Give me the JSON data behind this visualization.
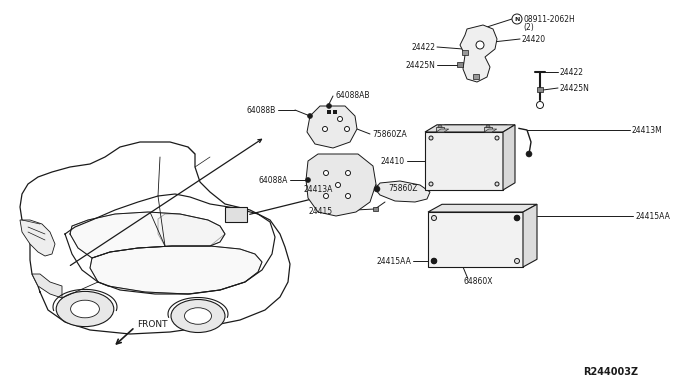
{
  "bg_color": "#ffffff",
  "line_color": "#1a1a1a",
  "text_color": "#1a1a1a",
  "diagram_id": "R244003Z",
  "front_label": "FRONT",
  "labels": {
    "bolt": "08911-2062H",
    "bolt2": "(2)",
    "n24420": "24420",
    "n24422a": "24422",
    "n24425Na": "24425N",
    "n24422b": "24422",
    "n24425Nb": "24425N",
    "n24413A": "24413A",
    "n24415": "24415",
    "n24413M": "24413M",
    "n24410": "24410",
    "n24415AA_l": "24415AA",
    "n24415AA_r": "24415AA",
    "n64860X": "64860X",
    "n64088B": "64088B",
    "n64088AB": "64088AB",
    "n75860ZA": "75860ZA",
    "n64088A": "64088A",
    "n75860Z": "75860Z"
  }
}
